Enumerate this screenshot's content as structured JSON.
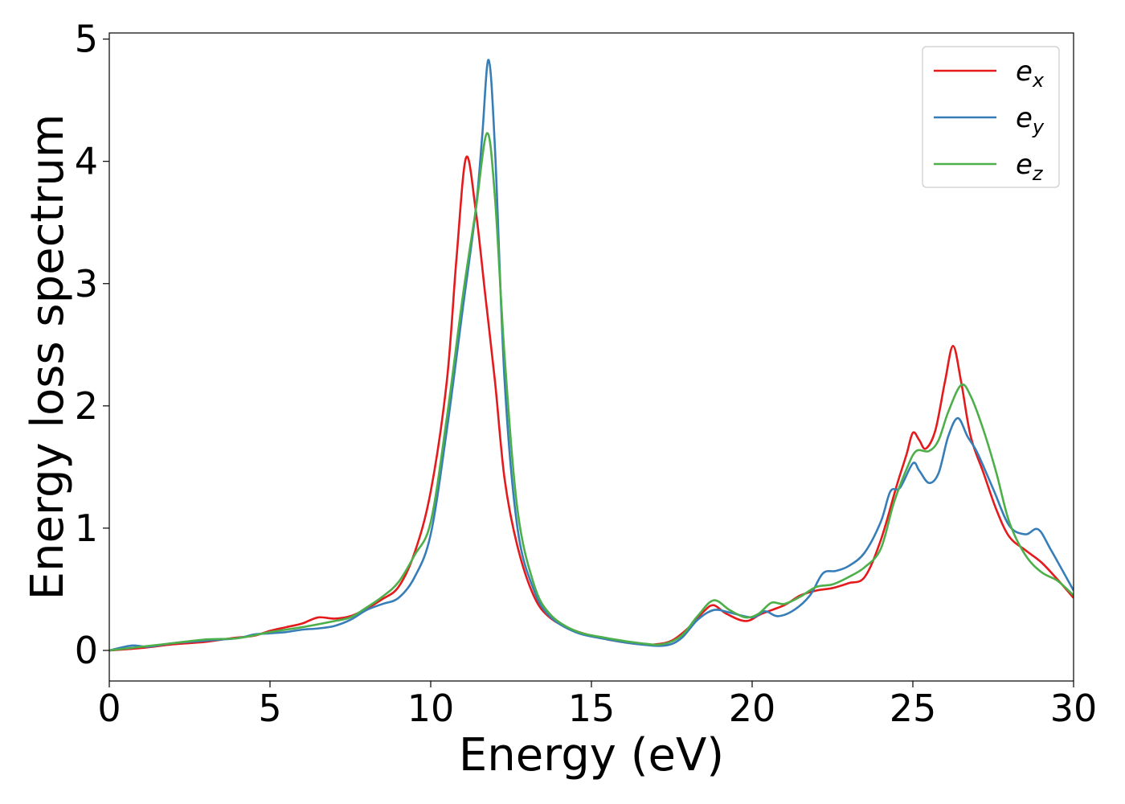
{
  "chart_data": {
    "type": "line",
    "title": "",
    "xlabel": "Energy (eV)",
    "ylabel": "Energy loss spectrum",
    "xlim": [
      0,
      30
    ],
    "ylim": [
      -0.25,
      5.05
    ],
    "xticks": [
      0,
      5,
      10,
      15,
      20,
      25,
      30
    ],
    "yticks": [
      0,
      1,
      2,
      3,
      4,
      5
    ],
    "grid": false,
    "legend_position": "top-right",
    "series": [
      {
        "name": "e",
        "subscript": "x",
        "color": "#e41a1c",
        "points": [
          [
            0,
            0
          ],
          [
            1,
            0.02
          ],
          [
            2,
            0.05
          ],
          [
            3,
            0.07
          ],
          [
            3.8,
            0.1
          ],
          [
            4.5,
            0.12
          ],
          [
            5,
            0.16
          ],
          [
            5.5,
            0.19
          ],
          [
            6,
            0.22
          ],
          [
            6.5,
            0.27
          ],
          [
            7,
            0.26
          ],
          [
            7.5,
            0.28
          ],
          [
            8,
            0.34
          ],
          [
            8.5,
            0.42
          ],
          [
            9,
            0.52
          ],
          [
            9.5,
            0.8
          ],
          [
            10,
            1.3
          ],
          [
            10.5,
            2.2
          ],
          [
            10.8,
            3.2
          ],
          [
            11.1,
            4.03
          ],
          [
            11.4,
            3.6
          ],
          [
            11.7,
            2.9
          ],
          [
            12,
            2.2
          ],
          [
            12.3,
            1.4
          ],
          [
            12.7,
            0.85
          ],
          [
            13.2,
            0.45
          ],
          [
            13.7,
            0.27
          ],
          [
            14.5,
            0.16
          ],
          [
            15.5,
            0.09
          ],
          [
            16.5,
            0.05
          ],
          [
            17,
            0.05
          ],
          [
            17.5,
            0.08
          ],
          [
            18,
            0.18
          ],
          [
            18.5,
            0.32
          ],
          [
            18.8,
            0.37
          ],
          [
            19.2,
            0.3
          ],
          [
            19.8,
            0.24
          ],
          [
            20.3,
            0.3
          ],
          [
            21,
            0.37
          ],
          [
            21.5,
            0.45
          ],
          [
            22,
            0.49
          ],
          [
            22.5,
            0.51
          ],
          [
            23,
            0.55
          ],
          [
            23.5,
            0.6
          ],
          [
            24,
            0.9
          ],
          [
            24.5,
            1.35
          ],
          [
            24.8,
            1.6
          ],
          [
            25,
            1.78
          ],
          [
            25.2,
            1.72
          ],
          [
            25.4,
            1.65
          ],
          [
            25.7,
            1.8
          ],
          [
            26,
            2.2
          ],
          [
            26.25,
            2.49
          ],
          [
            26.5,
            2.2
          ],
          [
            26.8,
            1.75
          ],
          [
            27.2,
            1.45
          ],
          [
            27.6,
            1.15
          ],
          [
            28,
            0.93
          ],
          [
            28.5,
            0.82
          ],
          [
            29,
            0.72
          ],
          [
            29.5,
            0.58
          ],
          [
            30,
            0.43
          ]
        ]
      },
      {
        "name": "e",
        "subscript": "y",
        "color": "#377eb8",
        "points": [
          [
            0,
            0
          ],
          [
            0.7,
            0.04
          ],
          [
            1.2,
            0.03
          ],
          [
            2,
            0.06
          ],
          [
            3,
            0.08
          ],
          [
            4,
            0.1
          ],
          [
            4.5,
            0.13
          ],
          [
            5,
            0.14
          ],
          [
            5.5,
            0.15
          ],
          [
            6,
            0.17
          ],
          [
            6.5,
            0.18
          ],
          [
            7,
            0.2
          ],
          [
            7.5,
            0.25
          ],
          [
            8,
            0.33
          ],
          [
            8.5,
            0.38
          ],
          [
            9,
            0.43
          ],
          [
            9.5,
            0.6
          ],
          [
            10,
            0.95
          ],
          [
            10.5,
            1.8
          ],
          [
            11,
            2.8
          ],
          [
            11.4,
            3.6
          ],
          [
            11.6,
            4.2
          ],
          [
            11.8,
            4.83
          ],
          [
            12,
            4.1
          ],
          [
            12.3,
            2.2
          ],
          [
            12.7,
            1.0
          ],
          [
            13.2,
            0.5
          ],
          [
            13.7,
            0.28
          ],
          [
            14.5,
            0.15
          ],
          [
            15.5,
            0.09
          ],
          [
            16.5,
            0.05
          ],
          [
            17.3,
            0.04
          ],
          [
            17.8,
            0.1
          ],
          [
            18.3,
            0.25
          ],
          [
            18.8,
            0.33
          ],
          [
            19.3,
            0.31
          ],
          [
            20,
            0.27
          ],
          [
            20.4,
            0.32
          ],
          [
            20.8,
            0.28
          ],
          [
            21.3,
            0.33
          ],
          [
            21.8,
            0.45
          ],
          [
            22.2,
            0.63
          ],
          [
            22.6,
            0.65
          ],
          [
            23,
            0.69
          ],
          [
            23.5,
            0.8
          ],
          [
            24,
            1.05
          ],
          [
            24.3,
            1.3
          ],
          [
            24.6,
            1.33
          ],
          [
            25,
            1.53
          ],
          [
            25.2,
            1.47
          ],
          [
            25.5,
            1.37
          ],
          [
            25.8,
            1.45
          ],
          [
            26.1,
            1.75
          ],
          [
            26.4,
            1.9
          ],
          [
            26.7,
            1.75
          ],
          [
            27,
            1.62
          ],
          [
            27.5,
            1.32
          ],
          [
            28,
            1.02
          ],
          [
            28.5,
            0.95
          ],
          [
            28.9,
            0.99
          ],
          [
            29.3,
            0.82
          ],
          [
            30,
            0.49
          ]
        ]
      },
      {
        "name": "e",
        "subscript": "z",
        "color": "#4daf4a",
        "points": [
          [
            0,
            0
          ],
          [
            1,
            0.03
          ],
          [
            2,
            0.06
          ],
          [
            3,
            0.09
          ],
          [
            4,
            0.1
          ],
          [
            5,
            0.15
          ],
          [
            6,
            0.19
          ],
          [
            7,
            0.24
          ],
          [
            7.5,
            0.27
          ],
          [
            8,
            0.35
          ],
          [
            8.5,
            0.44
          ],
          [
            9,
            0.56
          ],
          [
            9.5,
            0.78
          ],
          [
            10,
            1.05
          ],
          [
            10.5,
            1.9
          ],
          [
            11,
            2.9
          ],
          [
            11.4,
            3.6
          ],
          [
            11.75,
            4.23
          ],
          [
            12,
            3.7
          ],
          [
            12.3,
            2.4
          ],
          [
            12.7,
            1.15
          ],
          [
            13.2,
            0.55
          ],
          [
            13.7,
            0.3
          ],
          [
            14.5,
            0.16
          ],
          [
            15.5,
            0.1
          ],
          [
            16.5,
            0.06
          ],
          [
            17.2,
            0.05
          ],
          [
            17.8,
            0.12
          ],
          [
            18.3,
            0.28
          ],
          [
            18.8,
            0.41
          ],
          [
            19.3,
            0.33
          ],
          [
            19.8,
            0.27
          ],
          [
            20.2,
            0.3
          ],
          [
            20.6,
            0.39
          ],
          [
            21,
            0.38
          ],
          [
            21.5,
            0.44
          ],
          [
            22,
            0.52
          ],
          [
            22.5,
            0.54
          ],
          [
            23,
            0.6
          ],
          [
            23.5,
            0.68
          ],
          [
            24,
            0.83
          ],
          [
            24.4,
            1.2
          ],
          [
            24.8,
            1.48
          ],
          [
            25.1,
            1.63
          ],
          [
            25.5,
            1.63
          ],
          [
            25.8,
            1.72
          ],
          [
            26.1,
            1.95
          ],
          [
            26.5,
            2.17
          ],
          [
            26.8,
            2.08
          ],
          [
            27.2,
            1.8
          ],
          [
            27.6,
            1.45
          ],
          [
            28,
            1.05
          ],
          [
            28.5,
            0.78
          ],
          [
            29,
            0.64
          ],
          [
            29.5,
            0.57
          ],
          [
            30,
            0.45
          ]
        ]
      }
    ]
  }
}
